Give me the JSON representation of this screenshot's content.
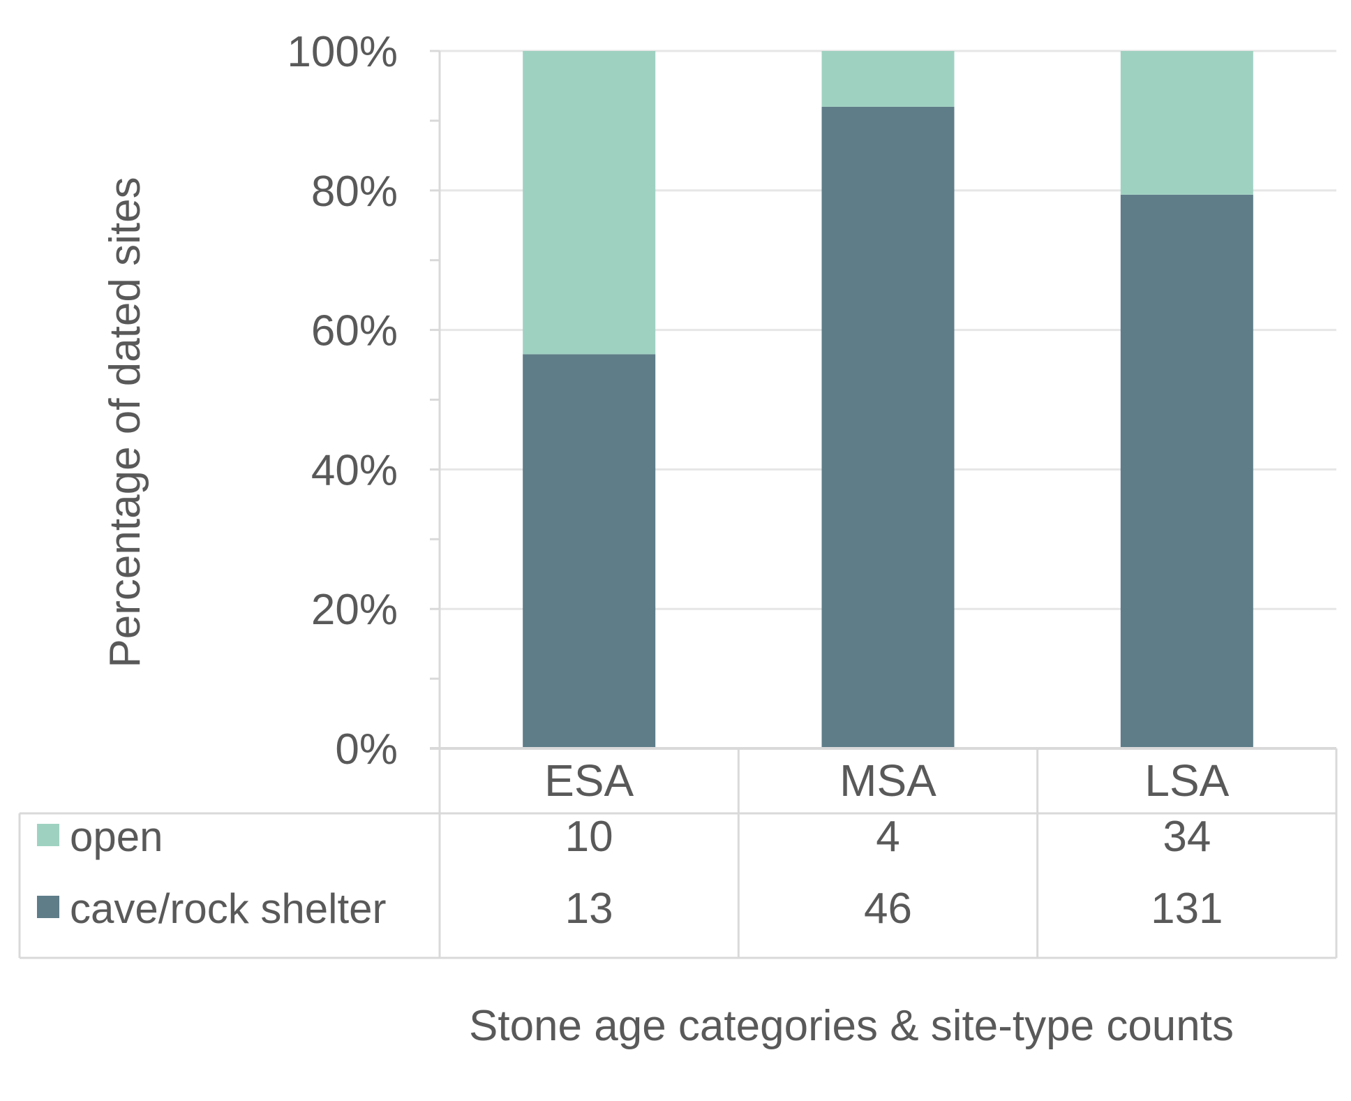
{
  "colors": {
    "open": "#9fd1c1",
    "cave": "#5e7d89",
    "grid": "#e6e6e6",
    "axis": "#d9d9d9",
    "table": "#d9d9d9",
    "text": "#595959"
  },
  "chart_data": {
    "type": "bar",
    "stacked": true,
    "normalized": true,
    "ylabel": "Percentage of dated sites",
    "xlabel": "Stone age categories & site-type counts",
    "ylim": [
      0,
      100
    ],
    "yticks": [
      "0%",
      "20%",
      "40%",
      "60%",
      "80%",
      "100%"
    ],
    "categories": [
      "ESA",
      "MSA",
      "LSA"
    ],
    "series": [
      {
        "name": "cave/rock shelter",
        "counts": [
          13,
          46,
          131
        ]
      },
      {
        "name": "open",
        "counts": [
          10,
          4,
          34
        ]
      }
    ],
    "legend_placement": "data-table"
  }
}
